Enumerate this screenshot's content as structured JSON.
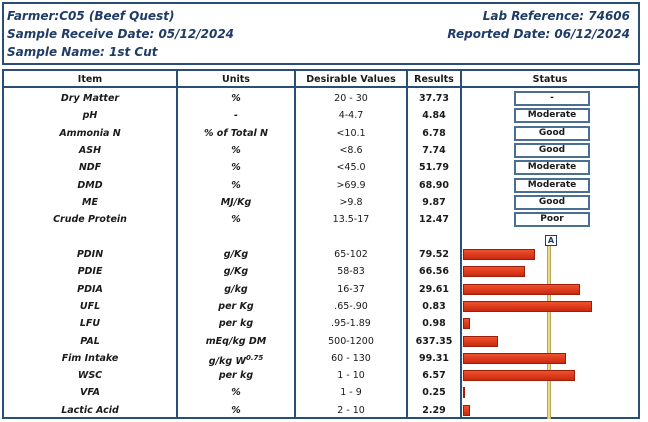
{
  "header": {
    "farmer": "Farmer:C05 (Beef Quest)",
    "receive_date": "Sample Receive Date: 05/12/2024",
    "sample_name": "Sample Name: 1st Cut",
    "lab_reference": "Lab Reference: 74606",
    "reported_date": "Reported Date: 06/12/2024"
  },
  "columns": {
    "item": "Item",
    "units": "Units",
    "desirable": "Desirable Values",
    "results": "Results",
    "status": "Status"
  },
  "rows_top": [
    {
      "item": "Dry Matter",
      "units": "%",
      "desirable": "20 - 30",
      "result": "37.73",
      "status": "-"
    },
    {
      "item": "pH",
      "units": "-",
      "desirable": "4-4.7",
      "result": "4.84",
      "status": "Moderate"
    },
    {
      "item": "Ammonia N",
      "units": "% of Total N",
      "desirable": "<10.1",
      "result": "6.78",
      "status": "Good"
    },
    {
      "item": "ASH",
      "units": "%",
      "desirable": "<8.6",
      "result": "7.74",
      "status": "Good"
    },
    {
      "item": "NDF",
      "units": "%",
      "desirable": "<45.0",
      "result": "51.79",
      "status": "Moderate"
    },
    {
      "item": "DMD",
      "units": "%",
      "desirable": ">69.9",
      "result": "68.90",
      "status": "Moderate"
    },
    {
      "item": "ME",
      "units": "MJ/Kg",
      "desirable": ">9.8",
      "result": "9.87",
      "status": "Good"
    },
    {
      "item": "Crude Protein",
      "units": "%",
      "desirable": "13.5-17",
      "result": "12.47",
      "status": "Poor"
    }
  ],
  "reference_marker": "A",
  "rows_bottom": [
    {
      "item": "PDIN",
      "units": "g/Kg",
      "desirable": "65-102",
      "result": "79.52",
      "level": 0.55
    },
    {
      "item": "PDIE",
      "units": "g/Kg",
      "desirable": "58-83",
      "result": "66.56",
      "level": 0.48
    },
    {
      "item": "PDIA",
      "units": "g/kg",
      "desirable": "16-37",
      "result": "29.61",
      "level": 0.9
    },
    {
      "item": "UFL",
      "units": "per Kg",
      "desirable": ".65-.90",
      "result": "0.83",
      "level": 0.99
    },
    {
      "item": "LFU",
      "units": "per kg",
      "desirable": ".95-1.89",
      "result": "0.98",
      "level": 0.05
    },
    {
      "item": "PAL",
      "units": "mEq/kg DM",
      "desirable": "500-1200",
      "result": "637.35",
      "level": 0.27
    },
    {
      "item": "Fim Intake",
      "units": "g/kg W",
      "units_sup": "0.75",
      "desirable": "60 - 130",
      "result": "99.31",
      "level": 0.79
    },
    {
      "item": "WSC",
      "units": "per kg",
      "desirable": "1 - 10",
      "result": "6.57",
      "level": 0.86
    },
    {
      "item": "VFA",
      "units": "%",
      "desirable": "1 - 9",
      "result": "0.25",
      "level": 0.01
    },
    {
      "item": "Lactic Acid",
      "units": "%",
      "desirable": "2 - 10",
      "result": "2.29",
      "level": 0.05
    }
  ]
}
